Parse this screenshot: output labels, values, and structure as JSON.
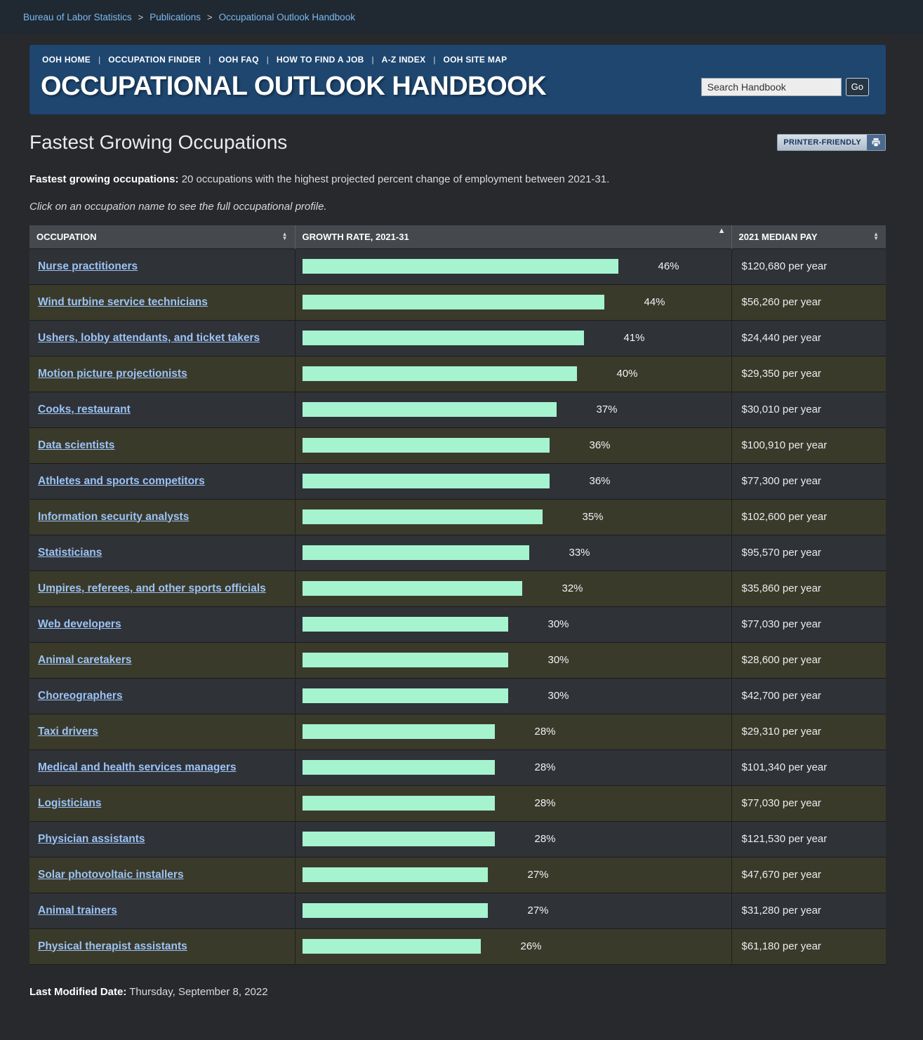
{
  "breadcrumb": {
    "items": [
      "Bureau of Labor Statistics",
      "Publications",
      "Occupational Outlook Handbook"
    ],
    "separator": ">"
  },
  "header": {
    "nav": [
      "OOH HOME",
      "OCCUPATION FINDER",
      "OOH FAQ",
      "HOW TO FIND A JOB",
      "A-Z INDEX",
      "OOH SITE MAP"
    ],
    "separator": "|",
    "title": "OCCUPATIONAL OUTLOOK HANDBOOK",
    "search_placeholder": "Search Handbook",
    "search_button": "Go"
  },
  "page": {
    "title": "Fastest Growing Occupations",
    "printer_button": "PRINTER-FRIENDLY",
    "intro_lead": "Fastest growing occupations:",
    "intro_text": " 20 occupations with the highest projected percent change of employment between 2021-31.",
    "note": "Click on an occupation name to see the full occupational profile.",
    "last_modified_label": "Last Modified Date:",
    "last_modified_value": " Thursday, September 8, 2022"
  },
  "colors": {
    "bar": "#a6f3d0",
    "panel_blue": "#1e466f",
    "row_olive": "#3a3a2b",
    "row_gray": "#2f3237",
    "link_blue": "#9cc3f5"
  },
  "table": {
    "columns": [
      {
        "label": "OCCUPATION",
        "sort": "both"
      },
      {
        "label": "GROWTH RATE, 2021-31",
        "sort": "asc"
      },
      {
        "label": "2021 MEDIAN PAY",
        "sort": "both"
      }
    ],
    "rows": [
      {
        "name": "Nurse practitioners",
        "growth_pct": 46,
        "growth_label": "46%",
        "pay": "$120,680 per year"
      },
      {
        "name": "Wind turbine service technicians",
        "growth_pct": 44,
        "growth_label": "44%",
        "pay": "$56,260 per year"
      },
      {
        "name": "Ushers, lobby attendants, and ticket takers",
        "growth_pct": 41,
        "growth_label": "41%",
        "pay": "$24,440 per year"
      },
      {
        "name": "Motion picture projectionists",
        "growth_pct": 40,
        "growth_label": "40%",
        "pay": "$29,350 per year"
      },
      {
        "name": "Cooks, restaurant",
        "growth_pct": 37,
        "growth_label": "37%",
        "pay": "$30,010 per year"
      },
      {
        "name": "Data scientists",
        "growth_pct": 36,
        "growth_label": "36%",
        "pay": "$100,910 per year"
      },
      {
        "name": "Athletes and sports competitors",
        "growth_pct": 36,
        "growth_label": "36%",
        "pay": "$77,300 per year"
      },
      {
        "name": "Information security analysts",
        "growth_pct": 35,
        "growth_label": "35%",
        "pay": "$102,600 per year"
      },
      {
        "name": "Statisticians",
        "growth_pct": 33,
        "growth_label": "33%",
        "pay": "$95,570 per year"
      },
      {
        "name": "Umpires, referees, and other sports officials",
        "growth_pct": 32,
        "growth_label": "32%",
        "pay": "$35,860 per year"
      },
      {
        "name": "Web developers",
        "growth_pct": 30,
        "growth_label": "30%",
        "pay": "$77,030 per year"
      },
      {
        "name": "Animal caretakers",
        "growth_pct": 30,
        "growth_label": "30%",
        "pay": "$28,600 per year"
      },
      {
        "name": "Choreographers",
        "growth_pct": 30,
        "growth_label": "30%",
        "pay": "$42,700 per year"
      },
      {
        "name": "Taxi drivers",
        "growth_pct": 28,
        "growth_label": "28%",
        "pay": "$29,310 per year"
      },
      {
        "name": "Medical and health services managers",
        "growth_pct": 28,
        "growth_label": "28%",
        "pay": "$101,340 per year"
      },
      {
        "name": "Logisticians",
        "growth_pct": 28,
        "growth_label": "28%",
        "pay": "$77,030 per year"
      },
      {
        "name": "Physician assistants",
        "growth_pct": 28,
        "growth_label": "28%",
        "pay": "$121,530 per year"
      },
      {
        "name": "Solar photovoltaic installers",
        "growth_pct": 27,
        "growth_label": "27%",
        "pay": "$47,670 per year"
      },
      {
        "name": "Animal trainers",
        "growth_pct": 27,
        "growth_label": "27%",
        "pay": "$31,280 per year"
      },
      {
        "name": "Physical therapist assistants",
        "growth_pct": 26,
        "growth_label": "26%",
        "pay": "$61,180 per year"
      }
    ]
  },
  "chart_data": {
    "type": "bar",
    "title": "Fastest Growing Occupations — Growth Rate, 2021-31",
    "orientation": "horizontal",
    "categories": [
      "Nurse practitioners",
      "Wind turbine service technicians",
      "Ushers, lobby attendants, and ticket takers",
      "Motion picture projectionists",
      "Cooks, restaurant",
      "Data scientists",
      "Athletes and sports competitors",
      "Information security analysts",
      "Statisticians",
      "Umpires, referees, and other sports officials",
      "Web developers",
      "Animal caretakers",
      "Choreographers",
      "Taxi drivers",
      "Medical and health services managers",
      "Logisticians",
      "Physician assistants",
      "Solar photovoltaic installers",
      "Animal trainers",
      "Physical therapist assistants"
    ],
    "values": [
      46,
      44,
      41,
      40,
      37,
      36,
      36,
      35,
      33,
      32,
      30,
      30,
      30,
      28,
      28,
      28,
      28,
      27,
      27,
      26
    ],
    "value_suffix": "%",
    "median_pay": [
      "$120,680 per year",
      "$56,260 per year",
      "$24,440 per year",
      "$29,350 per year",
      "$30,010 per year",
      "$100,910 per year",
      "$77,300 per year",
      "$102,600 per year",
      "$95,570 per year",
      "$35,860 per year",
      "$77,030 per year",
      "$28,600 per year",
      "$42,700 per year",
      "$29,310 per year",
      "$101,340 per year",
      "$77,030 per year",
      "$121,530 per year",
      "$47,670 per year",
      "$31,280 per year",
      "$61,180 per year"
    ],
    "xlabel": "Growth rate, 2021-31",
    "ylabel": "Occupation",
    "xlim": [
      0,
      46
    ],
    "grid": false,
    "legend": false
  }
}
